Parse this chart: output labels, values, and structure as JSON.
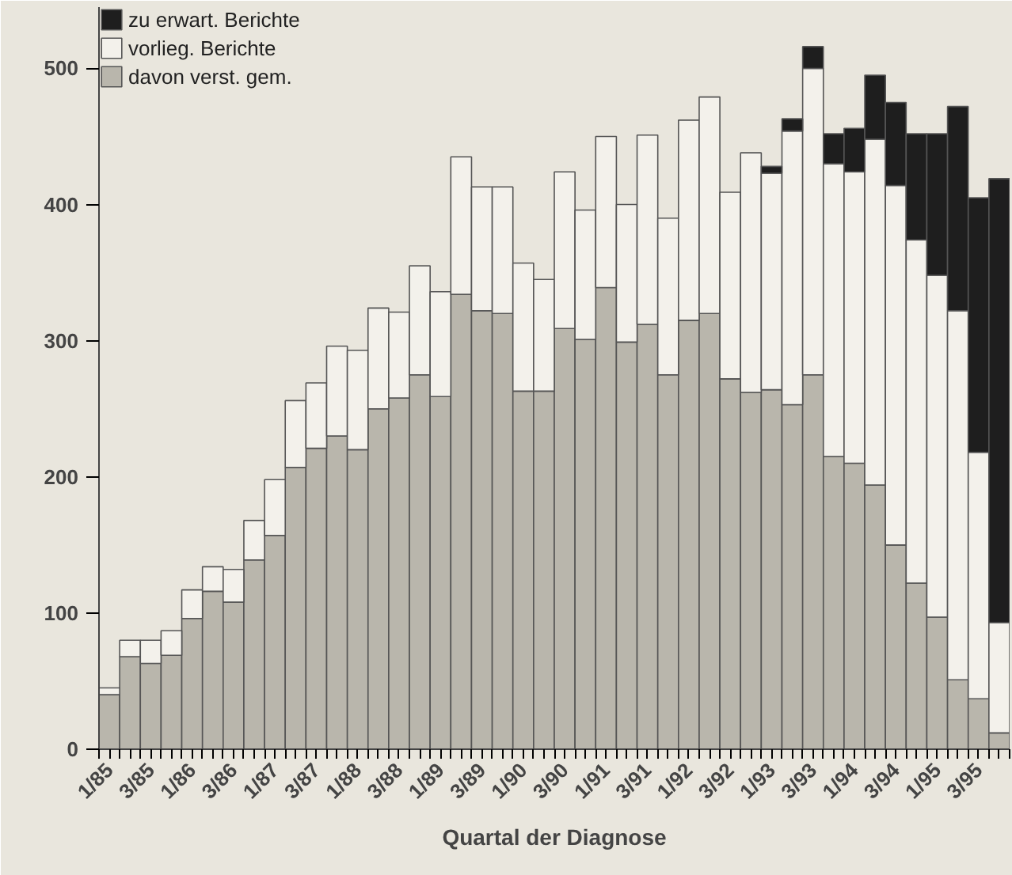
{
  "chart_data": {
    "type": "bar",
    "stacked": true,
    "xlabel": "Quartal der Diagnose",
    "categories": [
      "1/85",
      null,
      "3/85",
      null,
      "1/86",
      null,
      "3/86",
      null,
      "1/87",
      null,
      "3/87",
      null,
      "1/88",
      null,
      "3/88",
      null,
      "1/89",
      null,
      "3/89",
      null,
      "1/90",
      null,
      "3/90",
      null,
      "1/91",
      null,
      "3/91",
      null,
      "1/92",
      null,
      "3/92",
      null,
      "1/93",
      null,
      "3/93",
      null,
      "1/94",
      null,
      "3/94",
      null,
      "1/95",
      null,
      "3/95",
      null
    ],
    "series": [
      {
        "name": "davon verst. gem.",
        "color": "#b9b6ac",
        "values": [
          40,
          68,
          63,
          69,
          96,
          116,
          108,
          139,
          157,
          207,
          221,
          230,
          220,
          250,
          258,
          275,
          259,
          334,
          322,
          320,
          263,
          263,
          309,
          301,
          339,
          299,
          312,
          275,
          315,
          320,
          272,
          262,
          264,
          253,
          275,
          215,
          210,
          194,
          150,
          122,
          97,
          51,
          37,
          12
        ]
      },
      {
        "name": "vorlieg. Berichte",
        "color": "#f3f1eb",
        "values": [
          5,
          12,
          17,
          18,
          21,
          18,
          24,
          29,
          41,
          49,
          48,
          66,
          73,
          74,
          63,
          80,
          77,
          101,
          91,
          93,
          94,
          82,
          115,
          95,
          111,
          101,
          139,
          115,
          147,
          159,
          137,
          176,
          159,
          201,
          225,
          215,
          214,
          254,
          264,
          252,
          251,
          271,
          181,
          81
        ]
      },
      {
        "name": "zu erwart. Berichte",
        "color": "#1e1e1e",
        "values": [
          null,
          null,
          null,
          null,
          null,
          null,
          null,
          null,
          null,
          null,
          null,
          null,
          null,
          null,
          null,
          null,
          null,
          null,
          null,
          null,
          null,
          null,
          null,
          null,
          null,
          null,
          null,
          null,
          null,
          null,
          null,
          null,
          5,
          9,
          16,
          22,
          32,
          47,
          61,
          78,
          104,
          150,
          187,
          326
        ]
      }
    ],
    "ylim": [
      0,
      545
    ],
    "yticks": [
      0,
      100,
      200,
      300,
      400,
      500
    ],
    "grid": false,
    "legend": "top left"
  }
}
